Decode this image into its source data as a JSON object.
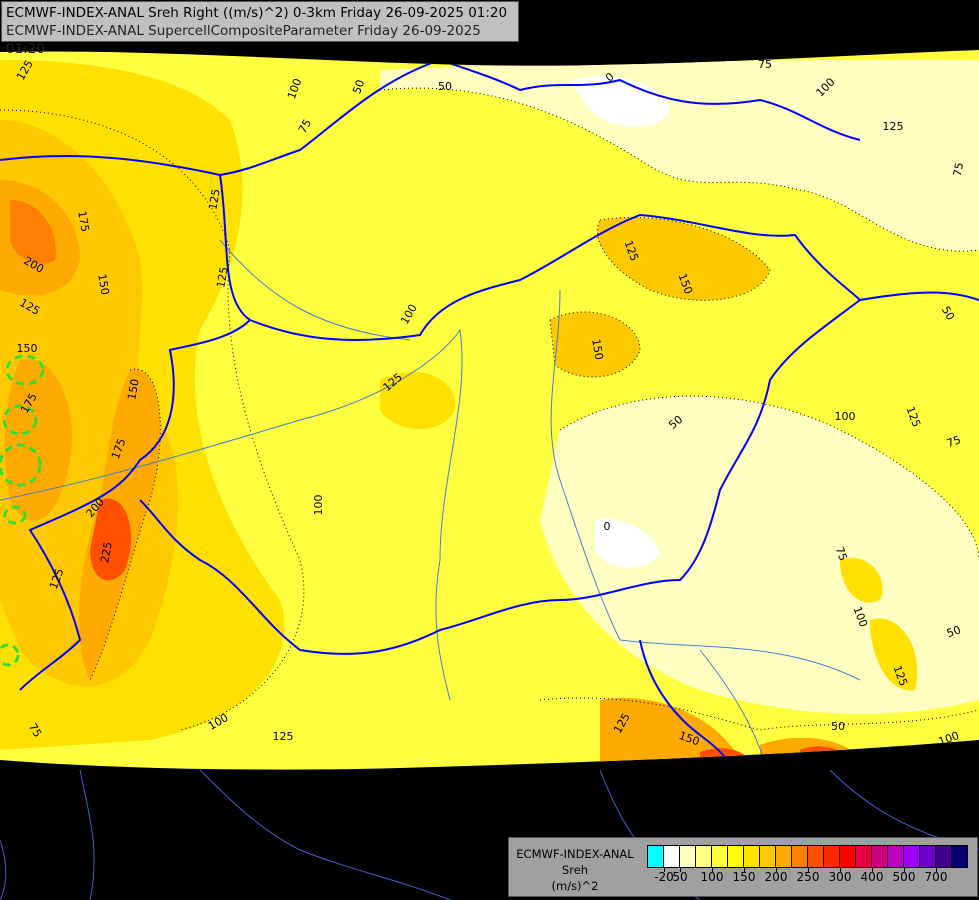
{
  "title": {
    "line1": "ECMWF-INDEX-ANAL Sreh Right ((m/s)^2) 0-3km Friday 26-09-2025 01:20",
    "line2": "ECMWF-INDEX-ANAL SupercellCompositeParameter Friday 26-09-2025 01:20"
  },
  "legend": {
    "model": "ECMWF-INDEX-ANAL",
    "parameter": "Sreh",
    "unit": "(m/s)^2",
    "colors": [
      "#00ffff",
      "#ffffff",
      "#ffffc0",
      "#ffff80",
      "#ffff40",
      "#ffff00",
      "#ffe000",
      "#ffc800",
      "#ffaa00",
      "#ff8000",
      "#ff5000",
      "#ff2800",
      "#ff0000",
      "#e80040",
      "#d00080",
      "#c000c0",
      "#a000ff",
      "#7000d0",
      "#400090",
      "#000070"
    ],
    "ticks": [
      "-20",
      "50",
      "100",
      "150",
      "200",
      "250",
      "300",
      "400",
      "500",
      "700"
    ]
  },
  "contour_labels": [
    "125",
    "100",
    "50",
    "50",
    "0",
    "75",
    "100",
    "125",
    "75",
    "75",
    "125",
    "175",
    "200",
    "150",
    "125",
    "125",
    "100",
    "125",
    "150",
    "150",
    "50",
    "150",
    "150",
    "175",
    "125",
    "50",
    "100",
    "125",
    "75",
    "175",
    "100",
    "200",
    "225",
    "125",
    "0",
    "75",
    "100",
    "50",
    "125",
    "100",
    "125",
    "75",
    "125",
    "150",
    "50",
    "100"
  ],
  "colors": {
    "border": "#0000ff",
    "river": "#4080d0",
    "scp_contour": "#33dd33",
    "background": "#000000"
  }
}
